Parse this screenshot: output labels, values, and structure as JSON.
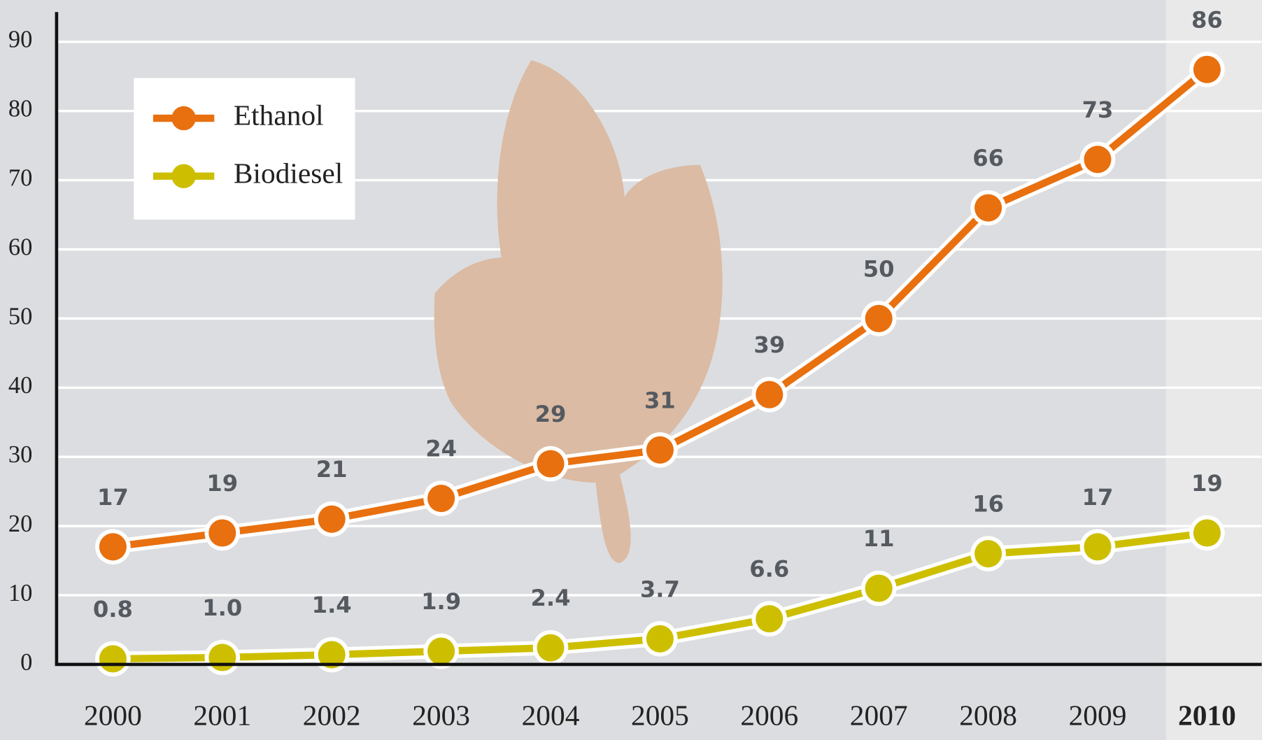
{
  "chart_data": {
    "type": "line",
    "categories": [
      "2000",
      "2001",
      "2002",
      "2003",
      "2004",
      "2005",
      "2006",
      "2007",
      "2008",
      "2009",
      "2010"
    ],
    "series": [
      {
        "name": "Ethanol",
        "color": "#e8700f",
        "values": [
          17,
          19,
          21,
          24,
          29,
          31,
          39,
          50,
          66,
          73,
          86
        ]
      },
      {
        "name": "Biodiesel",
        "color": "#cdbf00",
        "values": [
          0.8,
          1.0,
          1.4,
          1.9,
          2.4,
          3.7,
          6.6,
          11,
          16,
          17,
          19
        ],
        "value_labels": [
          "0.8",
          "1.0",
          "1.4",
          "1.9",
          "2.4",
          "3.7",
          "6.6",
          "11",
          "16",
          "17",
          "19"
        ]
      }
    ],
    "ylim": [
      0,
      94
    ],
    "yticks": [
      0,
      10,
      20,
      30,
      40,
      50,
      60,
      70,
      80,
      90
    ],
    "grid": true,
    "legend": "upper left"
  }
}
